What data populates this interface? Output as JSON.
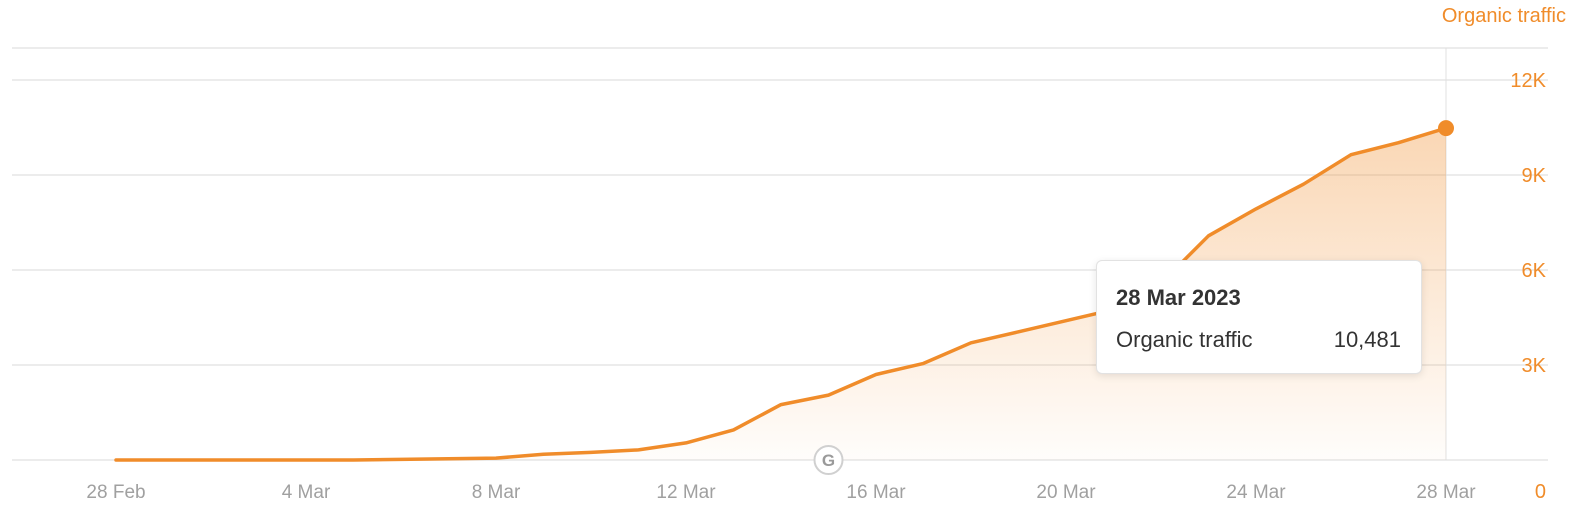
{
  "colors": {
    "accent": "#f08c2a",
    "grid": "#e6e6e6",
    "x_tick_text": "#a0a0a0",
    "tooltip_text": "#333333"
  },
  "series_label": "Organic traffic",
  "tooltip": {
    "date": "28 Mar 2023",
    "label": "Organic traffic",
    "value": "10,481"
  },
  "annotation_icon": "google-update-icon",
  "annotation_icon_letter": "G",
  "chart_data": {
    "type": "area",
    "title": "",
    "xlabel": "",
    "ylabel": "",
    "x_ticks": [
      "28 Feb",
      "4 Mar",
      "8 Mar",
      "12 Mar",
      "16 Mar",
      "20 Mar",
      "24 Mar",
      "28 Mar"
    ],
    "y_ticks": [
      "0",
      "3K",
      "6K",
      "9K",
      "12K"
    ],
    "ylim": [
      0,
      12000
    ],
    "y_axis_side": "right",
    "grid": true,
    "annotation_date": "2023-03-15",
    "series": [
      {
        "name": "Organic traffic",
        "x": [
          "2023-02-28",
          "2023-03-01",
          "2023-03-02",
          "2023-03-03",
          "2023-03-04",
          "2023-03-05",
          "2023-03-06",
          "2023-03-07",
          "2023-03-08",
          "2023-03-09",
          "2023-03-10",
          "2023-03-11",
          "2023-03-12",
          "2023-03-13",
          "2023-03-14",
          "2023-03-15",
          "2023-03-16",
          "2023-03-17",
          "2023-03-18",
          "2023-03-19",
          "2023-03-20",
          "2023-03-21",
          "2023-03-22",
          "2023-03-23",
          "2023-03-24",
          "2023-03-25",
          "2023-03-26",
          "2023-03-27",
          "2023-03-28"
        ],
        "values": [
          0,
          0,
          0,
          0,
          0,
          0,
          20,
          40,
          60,
          180,
          240,
          320,
          540,
          950,
          1750,
          2050,
          2700,
          3050,
          3700,
          4050,
          4400,
          4750,
          5580,
          7080,
          7930,
          8710,
          9640,
          10020,
          10481
        ]
      }
    ]
  }
}
